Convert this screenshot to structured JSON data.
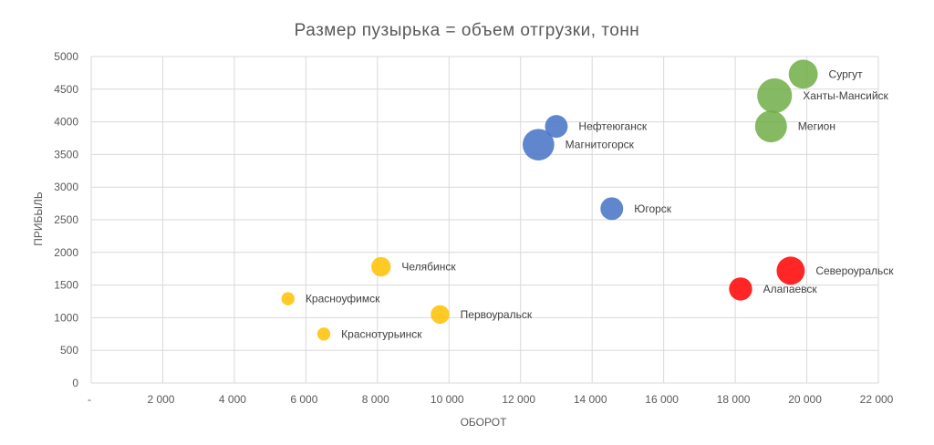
{
  "chart_data": {
    "type": "bubble",
    "title": "Размер пузырька = объем отгрузки, тонн",
    "xlabel": "ОБОРОТ",
    "ylabel": "ПРИБЫЛЬ",
    "xlim": [
      0,
      22000
    ],
    "ylim": [
      0,
      5000
    ],
    "x_ticks": [
      0,
      2000,
      4000,
      6000,
      8000,
      10000,
      12000,
      14000,
      16000,
      18000,
      20000,
      22000
    ],
    "x_tick_labels": [
      "-",
      "2 000",
      "4 000",
      "6 000",
      "8 000",
      "10 000",
      "12 000",
      "14 000",
      "16 000",
      "18 000",
      "20 000",
      "22 000"
    ],
    "y_ticks": [
      0,
      500,
      1000,
      1500,
      2000,
      2500,
      3000,
      3500,
      4000,
      4500,
      5000
    ],
    "y_tick_labels": [
      "0",
      "500",
      "1000",
      "1500",
      "2000",
      "2500",
      "3000",
      "3500",
      "4000",
      "4500",
      "5000"
    ],
    "grid": true,
    "legend": "none",
    "series": [
      {
        "color": "#ffc000",
        "points": [
          {
            "label": "Челябинск",
            "x": 8100,
            "y": 1780,
            "size": 2.2
          },
          {
            "label": "Красноуфимск",
            "x": 5500,
            "y": 1290,
            "size": 1.0
          },
          {
            "label": "Первоуральск",
            "x": 9750,
            "y": 1050,
            "size": 2.0
          },
          {
            "label": "Краснотурьинск",
            "x": 6500,
            "y": 750,
            "size": 1.0
          }
        ]
      },
      {
        "color": "#4472c4",
        "points": [
          {
            "label": "Нефтеюганск",
            "x": 13000,
            "y": 3930,
            "size": 3.0
          },
          {
            "label": "Магнитогорск",
            "x": 12500,
            "y": 3650,
            "size": 5.8
          },
          {
            "label": "Югорск",
            "x": 14550,
            "y": 2670,
            "size": 3.0
          }
        ]
      },
      {
        "color": "#70ad47",
        "points": [
          {
            "label": "Сургут",
            "x": 19900,
            "y": 4730,
            "size": 4.9
          },
          {
            "label": "Ханты-Мансийск",
            "x": 19100,
            "y": 4400,
            "size": 7.0
          },
          {
            "label": "Мегион",
            "x": 19000,
            "y": 3930,
            "size": 5.9
          }
        ]
      },
      {
        "color": "#ff0000",
        "points": [
          {
            "label": "Североуральск",
            "x": 19550,
            "y": 1720,
            "size": 4.6
          },
          {
            "label": "Алапаевск",
            "x": 18150,
            "y": 1440,
            "size": 3.1
          }
        ]
      }
    ]
  }
}
